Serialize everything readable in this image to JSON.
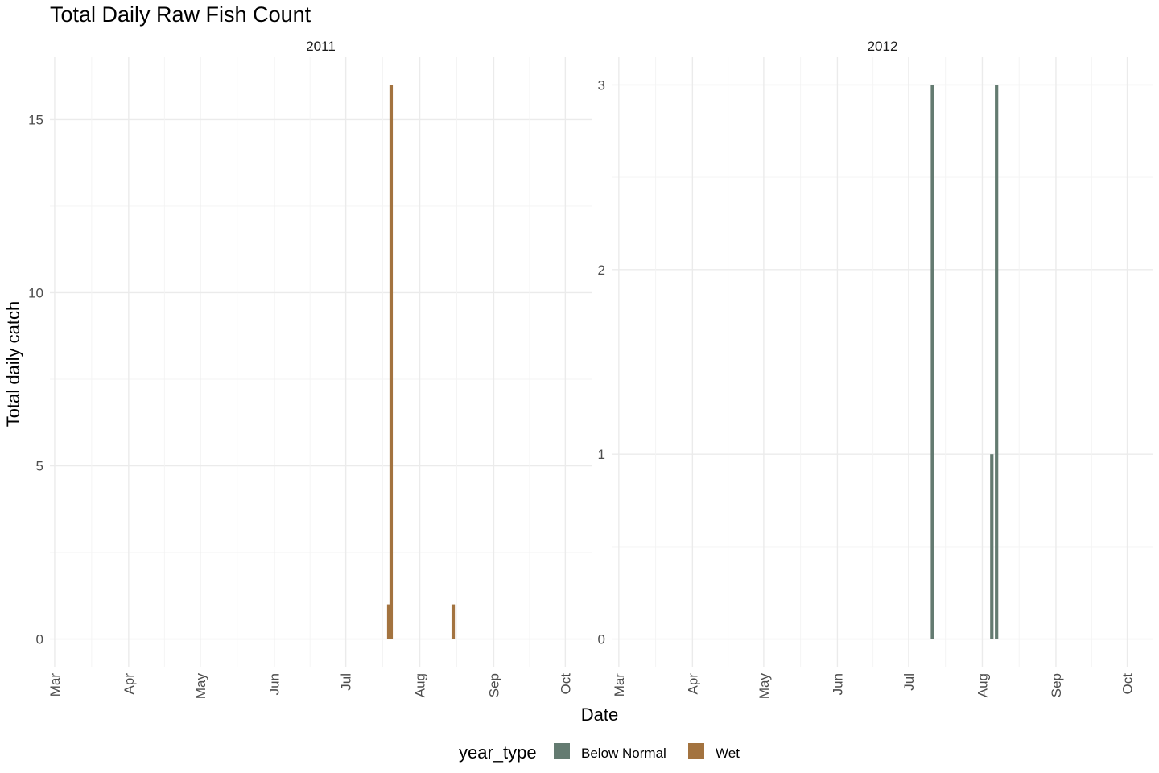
{
  "chart_data": {
    "type": "bar",
    "title": "Total Daily Raw Fish Count",
    "xlabel": "Date",
    "ylabel": "Total daily catch",
    "legend": {
      "title": "year_type",
      "position": "bottom",
      "entries": [
        {
          "label": "Below Normal",
          "color": "#647b71"
        },
        {
          "label": "Wet",
          "color": "#a3733f"
        }
      ]
    },
    "x_tick_labels": [
      "Mar",
      "Apr",
      "May",
      "Jun",
      "Jul",
      "Aug",
      "Sep",
      "Oct"
    ],
    "grid": true,
    "facets": [
      {
        "label": "2011",
        "year": 2011,
        "xlim": [
          "2011-02-27",
          "2011-10-12"
        ],
        "ylim": [
          -0.8,
          16.8
        ],
        "y_ticks": [
          0,
          5,
          10,
          15
        ],
        "series": [
          {
            "name": "Wet",
            "color": "#a3733f",
            "points": [
              {
                "date": "2011-07-19",
                "value": 1
              },
              {
                "date": "2011-07-20",
                "value": 16
              },
              {
                "date": "2011-08-15",
                "value": 1
              }
            ]
          }
        ]
      },
      {
        "label": "2012",
        "year": 2012,
        "xlim": [
          "2012-02-27",
          "2012-10-12"
        ],
        "ylim": [
          -0.15,
          3.15
        ],
        "y_ticks": [
          0,
          1,
          2,
          3
        ],
        "series": [
          {
            "name": "Below Normal",
            "color": "#647b71",
            "points": [
              {
                "date": "2012-07-11",
                "value": 3
              },
              {
                "date": "2012-08-05",
                "value": 1
              },
              {
                "date": "2012-08-07",
                "value": 3
              }
            ]
          }
        ]
      }
    ]
  }
}
